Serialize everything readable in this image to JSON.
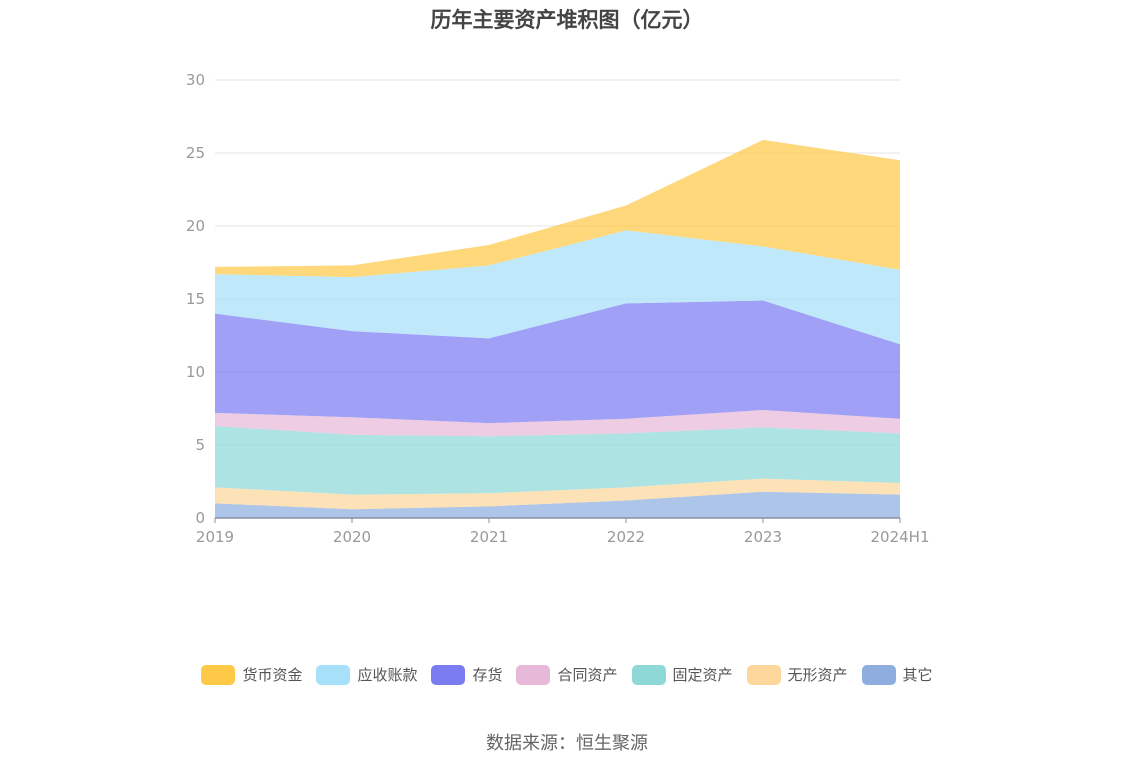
{
  "chart_data": {
    "type": "area",
    "stacked": true,
    "title": "历年主要资产堆积图（亿元）",
    "categories": [
      "2019",
      "2020",
      "2021",
      "2022",
      "2023",
      "2024H1"
    ],
    "ylim": [
      0,
      30
    ],
    "yticks": [
      0,
      5,
      10,
      15,
      20,
      25,
      30
    ],
    "xlabel": "",
    "ylabel": "",
    "grid": true,
    "series": [
      {
        "name": "其它",
        "color": "#8eaee0",
        "values": [
          1.0,
          0.6,
          0.8,
          1.2,
          1.8,
          1.6
        ]
      },
      {
        "name": "无形资产",
        "color": "#fdd79b",
        "values": [
          1.1,
          1.0,
          0.9,
          0.9,
          0.9,
          0.8
        ]
      },
      {
        "name": "固定资产",
        "color": "#8ed8d8",
        "values": [
          4.2,
          4.1,
          3.9,
          3.7,
          3.5,
          3.4
        ]
      },
      {
        "name": "合同资产",
        "color": "#e8b8d8",
        "values": [
          0.9,
          1.2,
          0.9,
          1.0,
          1.2,
          1.0
        ]
      },
      {
        "name": "存货",
        "color": "#7b7cf2",
        "values": [
          6.8,
          5.9,
          5.8,
          7.9,
          7.5,
          5.1
        ]
      },
      {
        "name": "应收账款",
        "color": "#a6e1f9",
        "values": [
          2.7,
          3.7,
          5.0,
          5.0,
          3.7,
          5.1
        ]
      },
      {
        "name": "货币资金",
        "color": "#fdc947",
        "values": [
          0.5,
          0.8,
          1.4,
          1.7,
          7.3,
          7.5
        ]
      }
    ],
    "legend": [
      "货币资金",
      "应收账款",
      "存货",
      "合同资产",
      "固定资产",
      "无形资产",
      "其它"
    ],
    "legend_position": "bottom"
  },
  "source": "数据来源：恒生聚源"
}
